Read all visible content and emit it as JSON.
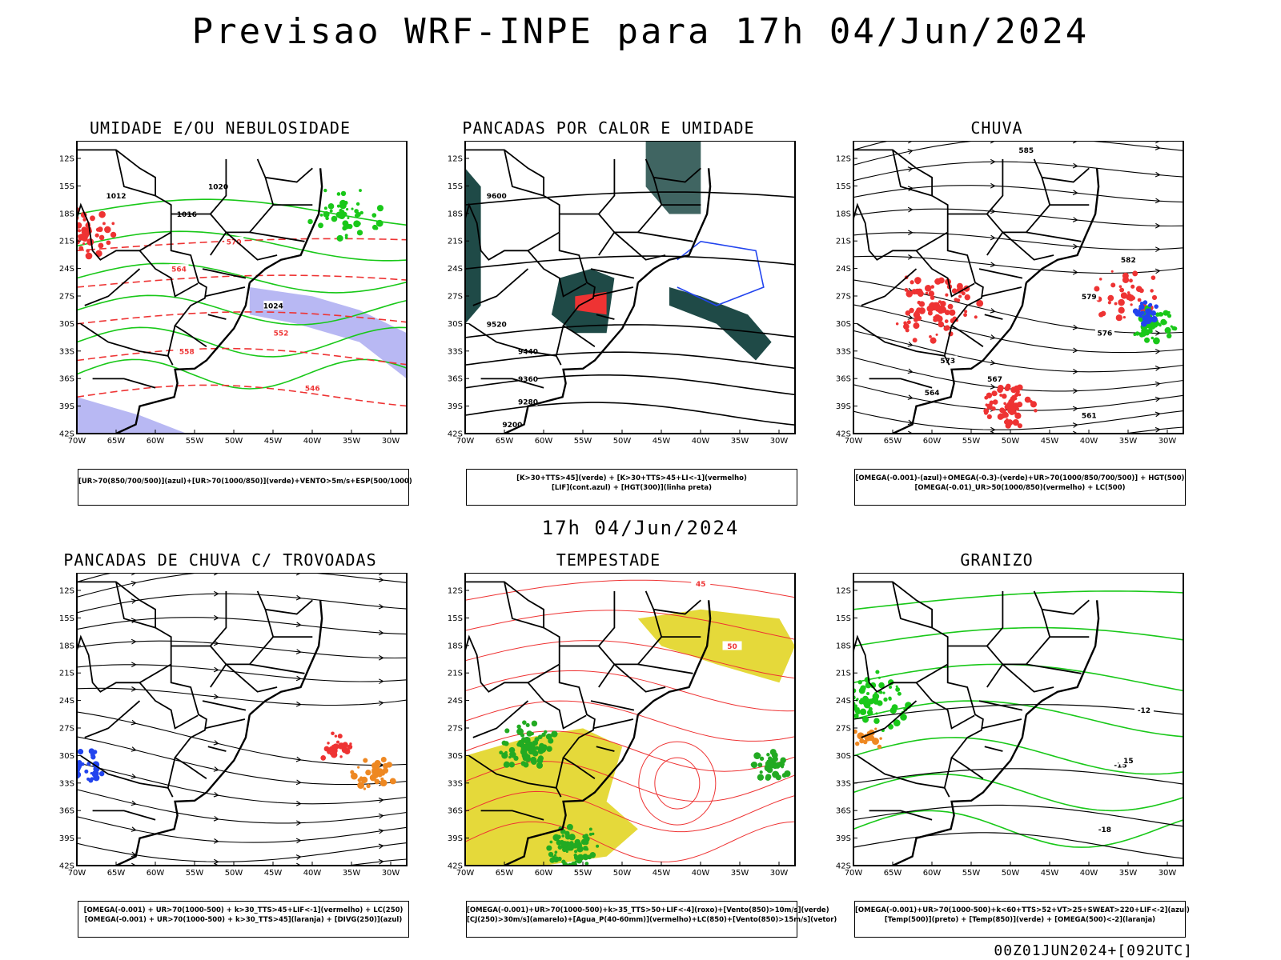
{
  "header": {
    "title": "Previsao WRF-INPE  para 17h 04/Jun/2024",
    "mid_date": "17h 04/Jun/2024",
    "run_info": "00Z01JUN2024+[092UTC]"
  },
  "map_axes": {
    "lat_labels": [
      "12S",
      "15S",
      "18S",
      "21S",
      "24S",
      "27S",
      "30S",
      "33S",
      "36S",
      "39S",
      "42S"
    ],
    "lon_labels": [
      "70W",
      "65W",
      "60W",
      "55W",
      "50W",
      "45W",
      "40W",
      "35W",
      "30W"
    ]
  },
  "colors": {
    "blue_shade": "#a6a6f0",
    "green_contour": "#19c819",
    "red_contour": "#ee3333",
    "dark_teal": "#1f4a47",
    "yellow_fill": "#e5d93a",
    "orange": "#ee8822",
    "blue_line": "#2244ee"
  },
  "panels": [
    {
      "title": "UMIDADE E/OU NEBULOSIDADE",
      "legend": [
        "[UR>70(850/700/500)](azul)+[UR>70(1000/850)](verde)+VENTO>5m/s+ESP(500/1000)"
      ],
      "contour_labels": [
        "1016",
        "1012",
        "1020",
        "1024",
        "570",
        "564",
        "558",
        "552",
        "546"
      ]
    },
    {
      "title": "PANCADAS POR CALOR E UMIDADE",
      "legend": [
        "[K>30+TTS>45](verde) + [K>30+TTS>45+LI<-1](vermelho)",
        "[LIF](cont.azul) + [HGT(300)](linha preta)"
      ],
      "contour_labels": [
        "9600",
        "9520",
        "9440",
        "9360",
        "9280",
        "9200"
      ]
    },
    {
      "title": "CHUVA",
      "legend": [
        "[OMEGA(-0.001)-(azul)+OMEGA(-0.3)-(verde)+UR>70(1000/850/700/500)] + HGT(500)",
        "[OMEGA(-0.01)_UR>50(1000/850)(vermelho) + LC(500)"
      ],
      "contour_labels": [
        "585",
        "582",
        "579",
        "576",
        "573",
        "567",
        "564",
        "561"
      ]
    },
    {
      "title": "PANCADAS DE CHUVA C/ TROVOADAS",
      "legend": [
        "[OMEGA(-0.001) + UR>70(1000-500) + k>30_TTS>45+LIF<-1](vermelho) + LC(250)",
        "[OMEGA(-0.001) + UR>70(1000-500) + k>30_TTS>45](laranja) + [DIVG(250)](azul)"
      ],
      "contour_labels": []
    },
    {
      "title": "TEMPESTADE",
      "legend": [
        "[OMEGA(-0.001)+UR>70(1000-500)+k>35_TTS>50+LIF<-4](roxo)+[Vento(850)>10m/s](verde)",
        "[CJ(250)>30m/s](amarelo)+[Agua_P(40-60mm)](vermelho)+LC(850)+[Vento(850)>15m/s](vetor)"
      ],
      "contour_labels": [
        "45",
        "50"
      ]
    },
    {
      "title": "GRANIZO",
      "legend": [
        "[OMEGA(-0.001)+UR>70(1000-500)+k<60+TTS>52+VT>25+SWEAT>220+LIF<-2](azul)",
        "[Temp(500)](preto) + [Temp(850)](verde) + [OMEGA(500)<-2](laranja)"
      ],
      "contour_labels": [
        "-12",
        "-15",
        "-18",
        "15"
      ]
    }
  ]
}
